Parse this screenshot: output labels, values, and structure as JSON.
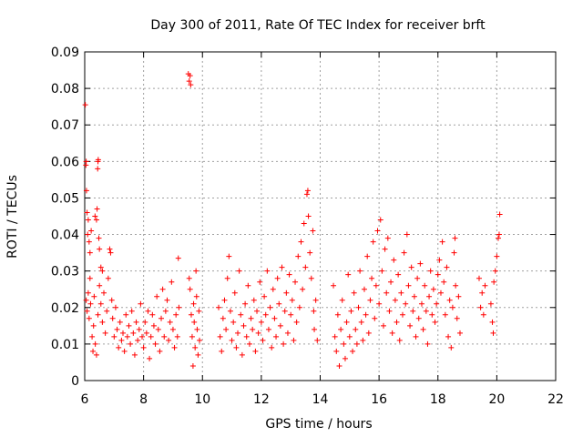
{
  "chart_data": {
    "type": "scatter",
    "title": "Day 300 of 2011, Rate Of TEC Index for receiver brft",
    "xlabel": "GPS time / hours",
    "ylabel": "ROTI / TECUs",
    "xlim": [
      6,
      22
    ],
    "ylim": [
      0,
      0.09
    ],
    "x_ticks": [
      "6",
      "8",
      "10",
      "12",
      "14",
      "16",
      "18",
      "20",
      "22"
    ],
    "y_ticks": [
      "0",
      "0.01",
      "0.02",
      "0.03",
      "0.04",
      "0.05",
      "0.06",
      "0.07",
      "0.08",
      "0.09"
    ],
    "grid": true,
    "marker": "+",
    "color": "#ff0000",
    "series": [
      {
        "points": [
          [
            6.02,
            0.0755
          ],
          [
            6.05,
            0.06
          ],
          [
            6.04,
            0.059
          ],
          [
            6.06,
            0.052
          ],
          [
            6.08,
            0.046
          ],
          [
            6.12,
            0.044
          ],
          [
            6.1,
            0.04
          ],
          [
            6.15,
            0.038
          ],
          [
            6.18,
            0.035
          ],
          [
            6.22,
            0.041
          ],
          [
            6.35,
            0.045
          ],
          [
            6.42,
            0.047
          ],
          [
            6.4,
            0.044
          ],
          [
            6.45,
            0.06
          ],
          [
            6.44,
            0.058
          ],
          [
            6.46,
            0.0605
          ],
          [
            6.48,
            0.039
          ],
          [
            6.5,
            0.036
          ],
          [
            6.55,
            0.031
          ],
          [
            6.6,
            0.03
          ],
          [
            6.05,
            0.022
          ],
          [
            6.08,
            0.019
          ],
          [
            6.12,
            0.024
          ],
          [
            6.15,
            0.017
          ],
          [
            6.18,
            0.028
          ],
          [
            6.2,
            0.021
          ],
          [
            6.25,
            0.012
          ],
          [
            6.28,
            0.008
          ],
          [
            6.3,
            0.015
          ],
          [
            6.32,
            0.023
          ],
          [
            6.36,
            0.01
          ],
          [
            6.4,
            0.007
          ],
          [
            6.45,
            0.018
          ],
          [
            6.5,
            0.026
          ],
          [
            6.55,
            0.021
          ],
          [
            6.6,
            0.016
          ],
          [
            6.65,
            0.024
          ],
          [
            6.7,
            0.013
          ],
          [
            6.75,
            0.019
          ],
          [
            6.8,
            0.028
          ],
          [
            6.85,
            0.036
          ],
          [
            6.88,
            0.035
          ],
          [
            6.92,
            0.022
          ],
          [
            6.95,
            0.017
          ],
          [
            7.0,
            0.012
          ],
          [
            7.05,
            0.02
          ],
          [
            7.1,
            0.014
          ],
          [
            7.15,
            0.009
          ],
          [
            7.2,
            0.016
          ],
          [
            7.25,
            0.011
          ],
          [
            7.3,
            0.013
          ],
          [
            7.35,
            0.008
          ],
          [
            7.4,
            0.018
          ],
          [
            7.45,
            0.012
          ],
          [
            7.5,
            0.015
          ],
          [
            7.55,
            0.01
          ],
          [
            7.6,
            0.019
          ],
          [
            7.65,
            0.013
          ],
          [
            7.7,
            0.007
          ],
          [
            7.75,
            0.016
          ],
          [
            7.8,
            0.011
          ],
          [
            7.85,
            0.014
          ],
          [
            7.9,
            0.021
          ],
          [
            7.95,
            0.012
          ],
          [
            8.0,
            0.009
          ],
          [
            8.05,
            0.016
          ],
          [
            8.1,
            0.013
          ],
          [
            8.15,
            0.019
          ],
          [
            8.2,
            0.006
          ],
          [
            8.25,
            0.012
          ],
          [
            8.3,
            0.018
          ],
          [
            8.35,
            0.015
          ],
          [
            8.4,
            0.01
          ],
          [
            8.45,
            0.023
          ],
          [
            8.5,
            0.014
          ],
          [
            8.55,
            0.008
          ],
          [
            8.6,
            0.017
          ],
          [
            8.65,
            0.025
          ],
          [
            8.7,
            0.012
          ],
          [
            8.75,
            0.019
          ],
          [
            8.8,
            0.022
          ],
          [
            8.85,
            0.011
          ],
          [
            8.9,
            0.016
          ],
          [
            8.95,
            0.027
          ],
          [
            9.0,
            0.014
          ],
          [
            9.05,
            0.009
          ],
          [
            9.1,
            0.018
          ],
          [
            9.15,
            0.012
          ],
          [
            9.18,
            0.0335
          ],
          [
            9.2,
            0.02
          ],
          [
            9.52,
            0.084
          ],
          [
            9.55,
            0.082
          ],
          [
            9.58,
            0.0835
          ],
          [
            9.6,
            0.081
          ],
          [
            9.55,
            0.028
          ],
          [
            9.58,
            0.025
          ],
          [
            9.62,
            0.018
          ],
          [
            9.65,
            0.012
          ],
          [
            9.68,
            0.004
          ],
          [
            9.7,
            0.021
          ],
          [
            9.72,
            0.016
          ],
          [
            9.75,
            0.009
          ],
          [
            9.78,
            0.03
          ],
          [
            9.8,
            0.023
          ],
          [
            9.82,
            0.014
          ],
          [
            9.85,
            0.007
          ],
          [
            9.88,
            0.019
          ],
          [
            9.9,
            0.011
          ],
          [
            10.55,
            0.02
          ],
          [
            10.6,
            0.012
          ],
          [
            10.65,
            0.008
          ],
          [
            10.7,
            0.017
          ],
          [
            10.75,
            0.022
          ],
          [
            10.8,
            0.014
          ],
          [
            10.85,
            0.028
          ],
          [
            10.9,
            0.034
          ],
          [
            10.95,
            0.019
          ],
          [
            11.0,
            0.011
          ],
          [
            11.05,
            0.016
          ],
          [
            11.1,
            0.024
          ],
          [
            11.15,
            0.009
          ],
          [
            11.2,
            0.013
          ],
          [
            11.25,
            0.03
          ],
          [
            11.3,
            0.018
          ],
          [
            11.35,
            0.007
          ],
          [
            11.4,
            0.015
          ],
          [
            11.45,
            0.021
          ],
          [
            11.5,
            0.012
          ],
          [
            11.55,
            0.026
          ],
          [
            11.6,
            0.01
          ],
          [
            11.65,
            0.017
          ],
          [
            11.7,
            0.014
          ],
          [
            11.75,
            0.022
          ],
          [
            11.8,
            0.008
          ],
          [
            11.85,
            0.019
          ],
          [
            11.9,
            0.013
          ],
          [
            11.95,
            0.027
          ],
          [
            12.0,
            0.016
          ],
          [
            12.05,
            0.011
          ],
          [
            12.1,
            0.023
          ],
          [
            12.15,
            0.018
          ],
          [
            12.2,
            0.03
          ],
          [
            12.25,
            0.014
          ],
          [
            12.3,
            0.02
          ],
          [
            12.35,
            0.009
          ],
          [
            12.4,
            0.025
          ],
          [
            12.45,
            0.017
          ],
          [
            12.5,
            0.012
          ],
          [
            12.55,
            0.028
          ],
          [
            12.6,
            0.021
          ],
          [
            12.65,
            0.015
          ],
          [
            12.7,
            0.031
          ],
          [
            12.75,
            0.01
          ],
          [
            12.8,
            0.019
          ],
          [
            12.85,
            0.024
          ],
          [
            12.9,
            0.013
          ],
          [
            12.95,
            0.029
          ],
          [
            13.0,
            0.018
          ],
          [
            13.05,
            0.022
          ],
          [
            13.1,
            0.011
          ],
          [
            13.15,
            0.027
          ],
          [
            13.2,
            0.016
          ],
          [
            13.25,
            0.034
          ],
          [
            13.3,
            0.02
          ],
          [
            13.35,
            0.038
          ],
          [
            13.4,
            0.025
          ],
          [
            13.45,
            0.043
          ],
          [
            13.5,
            0.031
          ],
          [
            13.55,
            0.051
          ],
          [
            13.58,
            0.052
          ],
          [
            13.6,
            0.045
          ],
          [
            13.65,
            0.035
          ],
          [
            13.7,
            0.028
          ],
          [
            13.75,
            0.041
          ],
          [
            13.78,
            0.019
          ],
          [
            13.8,
            0.014
          ],
          [
            13.85,
            0.022
          ],
          [
            13.9,
            0.011
          ],
          [
            14.45,
            0.026
          ],
          [
            14.5,
            0.012
          ],
          [
            14.55,
            0.008
          ],
          [
            14.6,
            0.018
          ],
          [
            14.65,
            0.004
          ],
          [
            14.7,
            0.014
          ],
          [
            14.75,
            0.022
          ],
          [
            14.8,
            0.01
          ],
          [
            14.85,
            0.006
          ],
          [
            14.9,
            0.016
          ],
          [
            14.95,
            0.029
          ],
          [
            15.0,
            0.012
          ],
          [
            15.05,
            0.019
          ],
          [
            15.1,
            0.008
          ],
          [
            15.15,
            0.024
          ],
          [
            15.2,
            0.014
          ],
          [
            15.25,
            0.01
          ],
          [
            15.3,
            0.02
          ],
          [
            15.35,
            0.03
          ],
          [
            15.4,
            0.016
          ],
          [
            15.45,
            0.011
          ],
          [
            15.5,
            0.025
          ],
          [
            15.55,
            0.018
          ],
          [
            15.6,
            0.034
          ],
          [
            15.65,
            0.013
          ],
          [
            15.7,
            0.022
          ],
          [
            15.75,
            0.028
          ],
          [
            15.8,
            0.038
          ],
          [
            15.85,
            0.017
          ],
          [
            15.9,
            0.026
          ],
          [
            15.95,
            0.041
          ],
          [
            16.0,
            0.021
          ],
          [
            16.05,
            0.044
          ],
          [
            16.1,
            0.03
          ],
          [
            16.15,
            0.015
          ],
          [
            16.2,
            0.036
          ],
          [
            16.25,
            0.024
          ],
          [
            16.3,
            0.039
          ],
          [
            16.35,
            0.019
          ],
          [
            16.4,
            0.027
          ],
          [
            16.45,
            0.013
          ],
          [
            16.5,
            0.033
          ],
          [
            16.55,
            0.022
          ],
          [
            16.6,
            0.016
          ],
          [
            16.65,
            0.029
          ],
          [
            16.7,
            0.011
          ],
          [
            16.75,
            0.024
          ],
          [
            16.8,
            0.018
          ],
          [
            16.85,
            0.035
          ],
          [
            16.9,
            0.021
          ],
          [
            16.95,
            0.04
          ],
          [
            17.0,
            0.026
          ],
          [
            17.05,
            0.015
          ],
          [
            17.1,
            0.031
          ],
          [
            17.15,
            0.019
          ],
          [
            17.2,
            0.023
          ],
          [
            17.25,
            0.012
          ],
          [
            17.3,
            0.028
          ],
          [
            17.35,
            0.017
          ],
          [
            17.4,
            0.032
          ],
          [
            17.45,
            0.021
          ],
          [
            17.5,
            0.014
          ],
          [
            17.55,
            0.026
          ],
          [
            17.6,
            0.019
          ],
          [
            17.65,
            0.01
          ],
          [
            17.7,
            0.023
          ],
          [
            17.75,
            0.03
          ],
          [
            17.8,
            0.018
          ],
          [
            17.85,
            0.025
          ],
          [
            17.9,
            0.016
          ],
          [
            17.95,
            0.021
          ],
          [
            18.0,
            0.029
          ],
          [
            18.05,
            0.033
          ],
          [
            18.1,
            0.024
          ],
          [
            18.15,
            0.038
          ],
          [
            18.2,
            0.027
          ],
          [
            18.25,
            0.018
          ],
          [
            18.3,
            0.031
          ],
          [
            18.35,
            0.012
          ],
          [
            18.4,
            0.022
          ],
          [
            18.45,
            0.009
          ],
          [
            18.5,
            0.02
          ],
          [
            18.55,
            0.035
          ],
          [
            18.58,
            0.039
          ],
          [
            18.6,
            0.026
          ],
          [
            18.65,
            0.017
          ],
          [
            18.7,
            0.023
          ],
          [
            18.75,
            0.013
          ],
          [
            19.4,
            0.028
          ],
          [
            19.45,
            0.02
          ],
          [
            19.5,
            0.024
          ],
          [
            19.55,
            0.018
          ],
          [
            19.6,
            0.026
          ],
          [
            19.8,
            0.021
          ],
          [
            19.85,
            0.016
          ],
          [
            19.88,
            0.013
          ],
          [
            19.9,
            0.027
          ],
          [
            19.95,
            0.03
          ],
          [
            20.0,
            0.034
          ],
          [
            20.05,
            0.039
          ],
          [
            20.08,
            0.04
          ],
          [
            20.1,
            0.0455
          ]
        ]
      }
    ]
  }
}
